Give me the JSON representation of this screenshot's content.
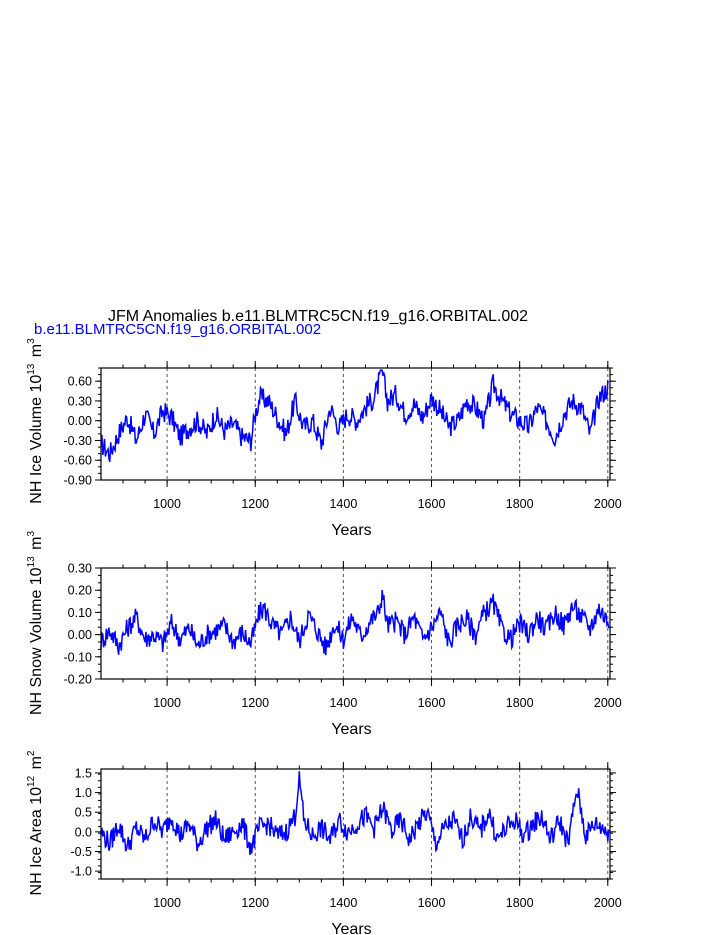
{
  "title": "JFM Anomalies b.e11.BLMTRC5CN.f19_g16.ORBITAL.002",
  "legend_label": "b.e11.BLMTRC5CN.f19_g16.ORBITAL.002",
  "series_color": "#0000ff",
  "chart_data": [
    {
      "type": "line",
      "ylabel_prefix": "NH Ice Volume 10",
      "ylabel_exp": "13",
      "ylabel_unit": "m",
      "ylabel_unit_exp": "3",
      "xlabel": "Years",
      "xlim": [
        850,
        2005
      ],
      "ylim": [
        -0.9,
        0.8
      ],
      "yticks": [
        -0.9,
        -0.6,
        -0.3,
        0.0,
        0.3,
        0.6
      ],
      "ytick_labels": [
        "-0.90",
        "-0.60",
        "-0.30",
        "0.00",
        "0.30",
        "0.60"
      ],
      "xticks": [
        1000,
        1200,
        1400,
        1600,
        1800,
        2000
      ],
      "xtick_labels": [
        "1000",
        "1200",
        "1400",
        "1600",
        "1800",
        "2000"
      ],
      "grid": "vertical-dashed",
      "series": [
        {
          "x": [
            850,
            870,
            890,
            910,
            930,
            950,
            970,
            990,
            1010,
            1030,
            1050,
            1070,
            1090,
            1110,
            1130,
            1150,
            1170,
            1190,
            1200,
            1210,
            1230,
            1250,
            1270,
            1290,
            1310,
            1330,
            1350,
            1370,
            1390,
            1410,
            1430,
            1450,
            1470,
            1488,
            1500,
            1520,
            1540,
            1560,
            1580,
            1600,
            1620,
            1640,
            1660,
            1680,
            1700,
            1720,
            1740,
            1760,
            1780,
            1800,
            1820,
            1840,
            1860,
            1880,
            1900,
            1920,
            1940,
            1960,
            1980,
            2000
          ],
          "y": [
            -0.35,
            -0.5,
            -0.2,
            0.05,
            -0.3,
            0.1,
            -0.2,
            0.15,
            0.05,
            -0.25,
            -0.1,
            0.0,
            -0.2,
            0.1,
            -0.15,
            -0.05,
            -0.25,
            -0.3,
            0.1,
            0.35,
            0.3,
            0.05,
            -0.2,
            0.3,
            -0.1,
            0.0,
            -0.35,
            0.2,
            -0.1,
            0.1,
            0.0,
            0.2,
            0.35,
            0.75,
            0.3,
            0.4,
            0.1,
            0.25,
            0.05,
            0.35,
            0.15,
            -0.1,
            0.0,
            0.3,
            0.2,
            0.0,
            0.55,
            0.3,
            0.1,
            0.0,
            -0.1,
            0.2,
            0.0,
            -0.25,
            0.1,
            0.3,
            0.2,
            -0.2,
            0.35,
            0.5
          ]
        }
      ]
    },
    {
      "type": "line",
      "ylabel_prefix": "NH Snow Volume 10",
      "ylabel_exp": "13",
      "ylabel_unit": "m",
      "ylabel_unit_exp": "3",
      "xlabel": "Years",
      "xlim": [
        850,
        2005
      ],
      "ylim": [
        -0.2,
        0.3
      ],
      "yticks": [
        -0.2,
        -0.1,
        0.0,
        0.1,
        0.2,
        0.3
      ],
      "ytick_labels": [
        "-0.20",
        "-0.10",
        "0.00",
        "0.10",
        "0.20",
        "0.30"
      ],
      "xticks": [
        1000,
        1200,
        1400,
        1600,
        1800,
        2000
      ],
      "xtick_labels": [
        "1000",
        "1200",
        "1400",
        "1600",
        "1800",
        "2000"
      ],
      "grid": "vertical-dashed",
      "series": [
        {
          "x": [
            850,
            870,
            890,
            910,
            930,
            950,
            970,
            990,
            1010,
            1030,
            1050,
            1070,
            1090,
            1110,
            1130,
            1150,
            1170,
            1190,
            1210,
            1220,
            1240,
            1260,
            1280,
            1300,
            1320,
            1340,
            1360,
            1380,
            1400,
            1420,
            1440,
            1460,
            1480,
            1488,
            1500,
            1520,
            1540,
            1560,
            1580,
            1600,
            1620,
            1640,
            1660,
            1680,
            1700,
            1720,
            1740,
            1760,
            1780,
            1800,
            1820,
            1840,
            1860,
            1880,
            1900,
            1920,
            1940,
            1960,
            1980,
            2000
          ],
          "y": [
            -0.03,
            0.02,
            -0.05,
            0.03,
            0.08,
            -0.02,
            0.0,
            -0.04,
            0.05,
            -0.02,
            0.03,
            -0.05,
            0.0,
            0.02,
            0.04,
            -0.03,
            0.01,
            -0.04,
            0.1,
            0.12,
            0.04,
            0.0,
            0.08,
            -0.03,
            0.09,
            0.02,
            -0.06,
            0.05,
            -0.02,
            0.08,
            -0.01,
            0.06,
            0.1,
            0.19,
            0.04,
            0.06,
            0.0,
            0.08,
            -0.02,
            0.03,
            0.1,
            -0.04,
            0.05,
            0.07,
            0.0,
            0.1,
            0.14,
            0.02,
            -0.02,
            0.05,
            0.0,
            0.08,
            0.02,
            0.1,
            0.04,
            0.13,
            0.08,
            0.03,
            0.12,
            0.06
          ]
        }
      ]
    },
    {
      "type": "line",
      "ylabel_prefix": "NH Ice Area 10",
      "ylabel_exp": "12",
      "ylabel_unit": "m",
      "ylabel_unit_exp": "2",
      "xlabel": "Years",
      "xlim": [
        850,
        2005
      ],
      "ylim": [
        -1.2,
        1.6
      ],
      "yticks": [
        -1.0,
        -0.5,
        0.0,
        0.5,
        1.0,
        1.5
      ],
      "ytick_labels": [
        "-1.0",
        "-0.5",
        "0.0",
        "0.5",
        "1.0",
        "1.5"
      ],
      "xticks": [
        1000,
        1200,
        1400,
        1600,
        1800,
        2000
      ],
      "xtick_labels": [
        "1000",
        "1200",
        "1400",
        "1600",
        "1800",
        "2000"
      ],
      "grid": "vertical-dashed",
      "series": [
        {
          "x": [
            850,
            870,
            890,
            910,
            930,
            950,
            970,
            990,
            1010,
            1030,
            1050,
            1070,
            1090,
            1110,
            1130,
            1150,
            1170,
            1190,
            1210,
            1230,
            1250,
            1270,
            1290,
            1300,
            1310,
            1330,
            1350,
            1370,
            1390,
            1410,
            1430,
            1450,
            1470,
            1490,
            1510,
            1530,
            1550,
            1570,
            1590,
            1610,
            1630,
            1650,
            1670,
            1690,
            1710,
            1730,
            1750,
            1770,
            1790,
            1810,
            1830,
            1850,
            1870,
            1890,
            1910,
            1930,
            1950,
            1970,
            1990,
            2000
          ],
          "y": [
            0.0,
            -0.3,
            0.2,
            -0.4,
            0.1,
            -0.2,
            0.3,
            0.0,
            0.4,
            -0.1,
            0.2,
            -0.3,
            0.1,
            0.3,
            -0.2,
            0.0,
            0.2,
            -0.4,
            0.1,
            0.2,
            -0.1,
            0.0,
            0.4,
            1.4,
            0.3,
            -0.1,
            0.1,
            -0.2,
            0.3,
            0.0,
            0.2,
            0.4,
            0.1,
            0.6,
            0.0,
            0.3,
            -0.2,
            0.2,
            0.5,
            -0.3,
            0.1,
            0.3,
            -0.2,
            0.4,
            0.0,
            0.5,
            -0.2,
            0.1,
            0.3,
            -0.1,
            0.2,
            0.4,
            -0.2,
            0.3,
            -0.3,
            1.1,
            -0.1,
            0.2,
            0.1,
            0.0
          ]
        }
      ]
    }
  ]
}
